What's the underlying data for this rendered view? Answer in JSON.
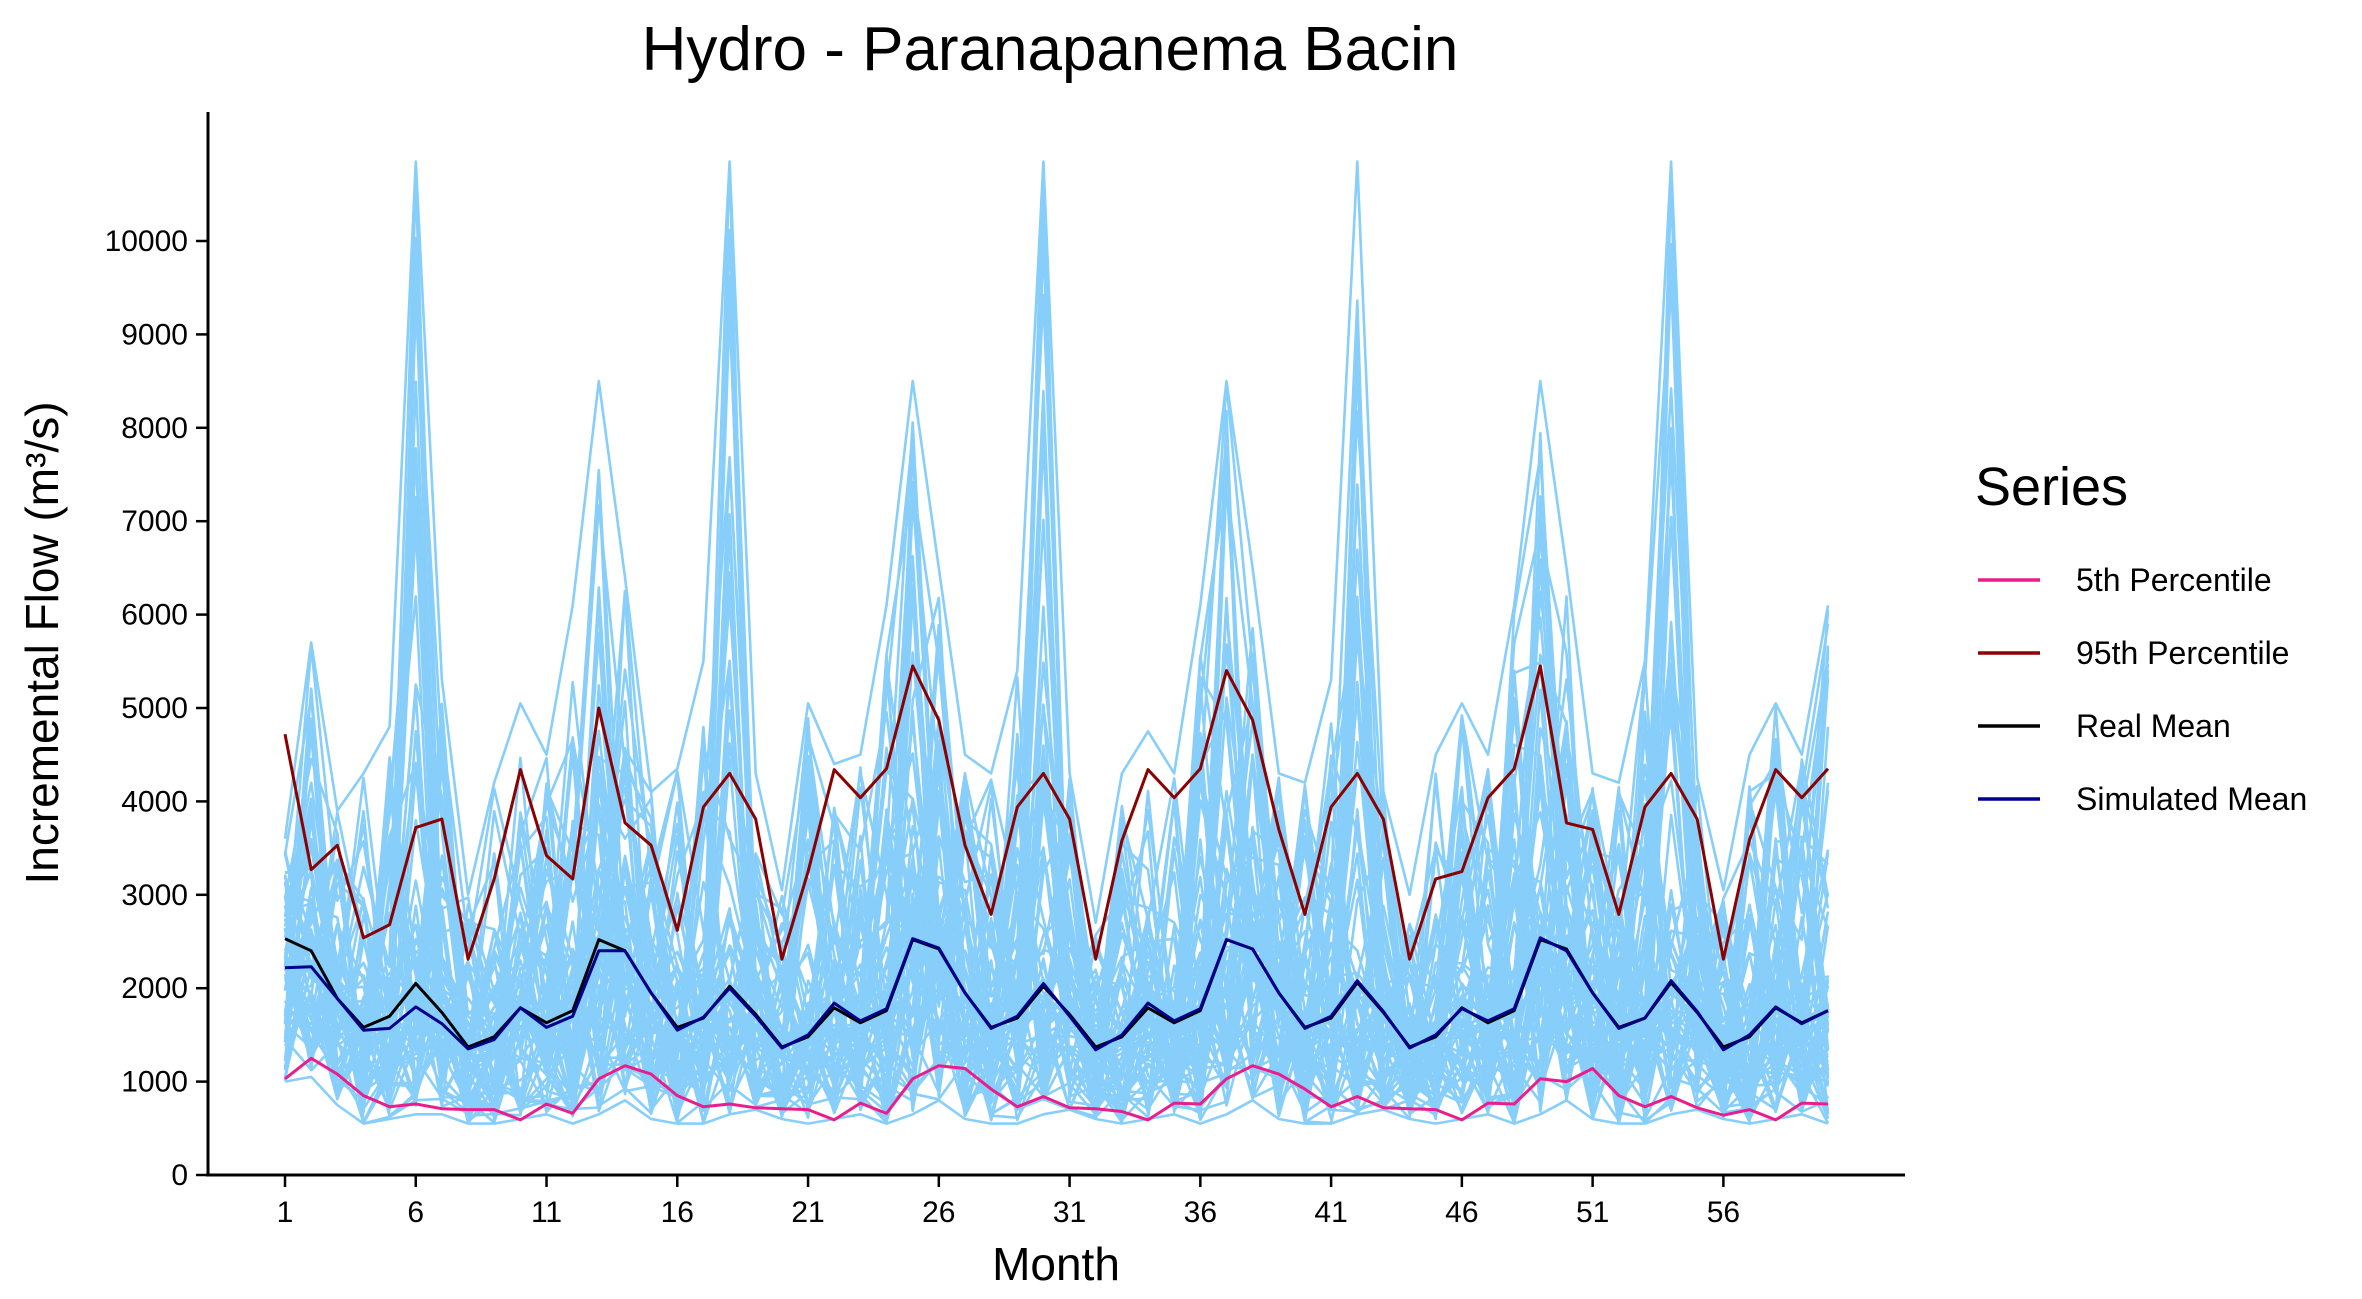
{
  "chart_data": {
    "type": "line",
    "title": "Hydro - Paranapanema Bacin",
    "xlabel": "Month",
    "ylabel": "Incremental Flow (m³/s)",
    "xlim": [
      1,
      60
    ],
    "ylim": [
      0,
      10900
    ],
    "x_ticks": [
      1,
      6,
      11,
      16,
      21,
      26,
      31,
      36,
      41,
      46,
      51,
      56
    ],
    "y_ticks": [
      0,
      1000,
      2000,
      3000,
      4000,
      5000,
      6000,
      7000,
      8000,
      9000,
      10000
    ],
    "grid": false,
    "legend": {
      "title": "Series",
      "position": "right"
    },
    "simulated_scenarios": {
      "color": "#87CEFA",
      "note_count": 200,
      "envelope_max": [
        3600,
        5700,
        3900,
        4300,
        4800,
        10850,
        5300,
        3000,
        4200,
        5050,
        4500,
        6100,
        8500,
        6400,
        4100,
        4350,
        5500,
        10850,
        4300,
        3050,
        5050,
        4400,
        4500,
        6100,
        8500,
        6500,
        4500,
        4300,
        5400,
        10850,
        4300,
        2700,
        4300,
        4750,
        4300,
        6100,
        8500,
        6500,
        4300,
        4200,
        5300,
        10850,
        4100,
        3000,
        4500,
        5050,
        4500,
        6100,
        8500,
        6500,
        4300,
        4200,
        5500,
        10850,
        4250,
        3050,
        4500,
        5050,
        4500,
        6100
      ],
      "envelope_min": [
        1000,
        1050,
        750,
        550,
        600,
        650,
        650,
        550,
        550,
        600,
        650,
        550,
        650,
        800,
        600,
        550,
        550,
        650,
        700,
        600,
        550,
        600,
        650,
        550,
        650,
        800,
        600,
        550,
        550,
        650,
        700,
        600,
        550,
        600,
        650,
        550,
        650,
        800,
        600,
        550,
        550,
        650,
        700,
        600,
        550,
        600,
        650,
        550,
        650,
        800,
        600,
        550,
        550,
        650,
        700,
        600,
        550,
        600,
        650,
        550
      ]
    },
    "series": [
      {
        "name": "5th Percentile",
        "color": "#E91E8C",
        "values": [
          1030,
          1250,
          1080,
          850,
          730,
          760,
          710,
          700,
          700,
          590,
          760,
          660,
          1030,
          1170,
          1080,
          850,
          730,
          760,
          720,
          710,
          700,
          590,
          770,
          660,
          1030,
          1170,
          1140,
          920,
          730,
          840,
          720,
          710,
          680,
          590,
          770,
          760,
          1030,
          1170,
          1080,
          920,
          730,
          840,
          720,
          710,
          700,
          590,
          770,
          760,
          1030,
          1000,
          1140,
          850,
          730,
          840,
          720,
          640,
          700,
          590,
          770,
          760
        ]
      },
      {
        "name": "95th Percentile",
        "color": "#8B0000",
        "values": [
          4720,
          3270,
          3530,
          2540,
          2680,
          3720,
          3810,
          2310,
          3170,
          4340,
          3420,
          3170,
          5000,
          3770,
          3530,
          2620,
          3940,
          4300,
          3810,
          2310,
          3250,
          4340,
          4040,
          4350,
          5450,
          4870,
          3530,
          2790,
          3940,
          4300,
          3810,
          2310,
          3580,
          4340,
          4040,
          4350,
          5400,
          4870,
          3700,
          2790,
          3940,
          4300,
          3810,
          2310,
          3170,
          3250,
          4040,
          4350,
          5450,
          3770,
          3700,
          2790,
          3940,
          4300,
          3810,
          2310,
          3590,
          4340,
          4040,
          4350
        ]
      },
      {
        "name": "Real Mean",
        "color": "#000000",
        "values": [
          2530,
          2400,
          1890,
          1580,
          1700,
          2050,
          1740,
          1370,
          1480,
          1790,
          1630,
          1760,
          2520,
          2400,
          1950,
          1580,
          1680,
          2020,
          1720,
          1370,
          1480,
          1790,
          1630,
          1760,
          2520,
          2420,
          1950,
          1580,
          1680,
          2020,
          1720,
          1370,
          1480,
          1790,
          1630,
          1760,
          2520,
          2420,
          1950,
          1580,
          1680,
          2060,
          1740,
          1370,
          1480,
          1790,
          1630,
          1760,
          2520,
          2420,
          1950,
          1580,
          1680,
          2060,
          1740,
          1370,
          1480,
          1790,
          1630,
          1760
        ]
      },
      {
        "name": "Simulated Mean",
        "color": "#00008B",
        "values": [
          2220,
          2230,
          1890,
          1550,
          1570,
          1800,
          1620,
          1350,
          1450,
          1790,
          1580,
          1700,
          2400,
          2400,
          1950,
          1550,
          1690,
          2000,
          1700,
          1360,
          1500,
          1840,
          1650,
          1780,
          2530,
          2430,
          1950,
          1570,
          1700,
          2050,
          1700,
          1340,
          1500,
          1840,
          1650,
          1780,
          2520,
          2420,
          1950,
          1570,
          1700,
          2080,
          1750,
          1360,
          1500,
          1780,
          1650,
          1780,
          2540,
          2400,
          1950,
          1570,
          1680,
          2080,
          1750,
          1340,
          1500,
          1800,
          1620,
          1760
        ]
      }
    ]
  }
}
